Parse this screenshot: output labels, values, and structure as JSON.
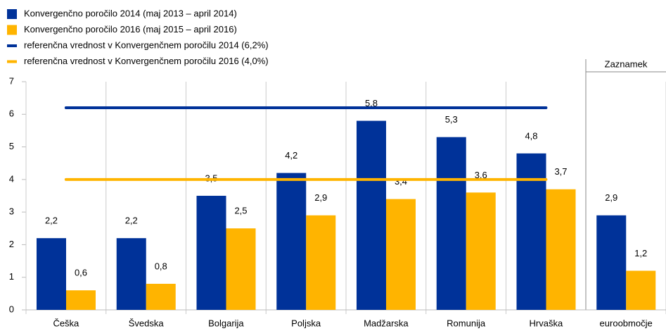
{
  "chart_data": {
    "type": "bar",
    "categories": [
      "Češka",
      "Švedska",
      "Bolgarija",
      "Poljska",
      "Madžarska",
      "Romunija",
      "Hrvaška",
      "euroobmočje"
    ],
    "series": [
      {
        "name": "Konvergenčno poročilo 2014 (maj 2013 – april 2014)",
        "type": "bar",
        "color": "#003299",
        "values": [
          2.2,
          2.2,
          3.5,
          4.2,
          5.8,
          5.3,
          4.8,
          2.9
        ],
        "value_labels": [
          "2,2",
          "2,2",
          "3,5",
          "4,2",
          "5,8",
          "5,3",
          "4,8",
          "2,9"
        ]
      },
      {
        "name": "Konvergenčno poročilo 2016 (maj 2015 – april 2016)",
        "type": "bar",
        "color": "#ffb400",
        "values": [
          0.6,
          0.8,
          2.5,
          2.9,
          3.4,
          3.6,
          3.7,
          1.2
        ],
        "value_labels": [
          "0,6",
          "0,8",
          "2,5",
          "2,9",
          "3,4",
          "3,6",
          "3,7",
          "1,2"
        ]
      },
      {
        "name": "referenčna vrednost v Konvergenčnem poročilu 2014 (6,2%)",
        "type": "line",
        "color": "#003299",
        "values": [
          6.2,
          6.2,
          6.2,
          6.2,
          6.2,
          6.2,
          6.2,
          null
        ]
      },
      {
        "name": "referenčna vrednost v Konvergenčnem poročilu 2016 (4,0%)",
        "type": "line",
        "color": "#ffb400",
        "values": [
          4.0,
          4.0,
          4.0,
          4.0,
          4.0,
          4.0,
          4.0,
          null
        ]
      }
    ],
    "annotation": "Zaznamek",
    "ylim": [
      0,
      7
    ],
    "yticks": [
      0,
      1,
      2,
      3,
      4,
      5,
      6,
      7
    ]
  }
}
